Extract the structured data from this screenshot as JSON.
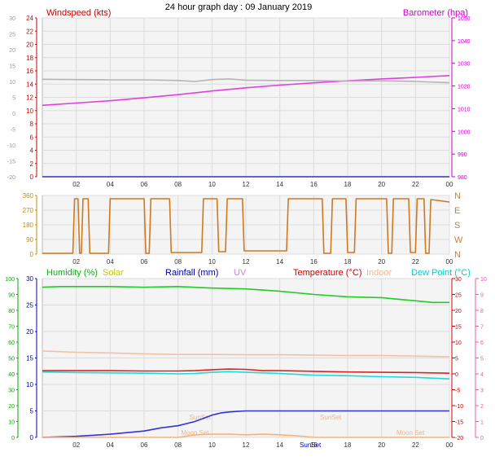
{
  "title": "24 hour graph day : 09 January 2019",
  "chart_data": [
    {
      "id": "wind_baro",
      "type": "line",
      "x_ticks": [
        "02",
        "04",
        "06",
        "08",
        "10",
        "12",
        "14",
        "16",
        "18",
        "20",
        "22",
        "00"
      ],
      "left_axis": {
        "label": "Windspeed (kts)",
        "ylim": [
          0,
          24
        ],
        "ticks": [
          0,
          2,
          4,
          6,
          8,
          10,
          12,
          14,
          16,
          18,
          20,
          22,
          24
        ],
        "color": "#cc0000"
      },
      "far_left_axis": {
        "ylim": [
          -20,
          30
        ],
        "ticks": [
          -20,
          -15,
          -10,
          -5,
          0,
          5,
          10,
          15,
          20,
          25,
          30
        ],
        "color": "#999999"
      },
      "right_axis": {
        "label": "Barometer (hpa)",
        "ylim": [
          980,
          1050
        ],
        "ticks": [
          980,
          990,
          1000,
          1010,
          1020,
          1030,
          1040,
          1050
        ],
        "color": "#cc00cc"
      },
      "series": [
        {
          "axis": "right",
          "color": "#e040e0",
          "x": [
            0,
            2,
            4,
            6,
            8,
            10,
            12,
            14,
            16,
            18,
            20,
            22,
            24
          ],
          "values": [
            1011.5,
            1012.5,
            1013.5,
            1014.8,
            1016.2,
            1017.8,
            1019.2,
            1020.4,
            1021.4,
            1022.3,
            1023.1,
            1023.8,
            1024.6
          ]
        },
        {
          "axis": "far_left",
          "color": "#b4b4b4",
          "x": [
            0,
            2,
            4,
            6,
            8,
            9,
            10,
            11,
            12,
            14,
            16,
            18,
            20,
            22,
            24
          ],
          "values": [
            10.7,
            10.6,
            10.5,
            10.5,
            10.3,
            10.0,
            10.6,
            10.8,
            10.4,
            10.3,
            10.3,
            10.1,
            10.2,
            10.0,
            9.6
          ]
        },
        {
          "axis": "left",
          "color": "#3030c8",
          "x": [
            0,
            24
          ],
          "values": [
            0,
            0
          ]
        }
      ]
    },
    {
      "id": "wind_dir",
      "type": "line",
      "x_ticks": [
        "02",
        "04",
        "06",
        "08",
        "10",
        "12",
        "14",
        "16",
        "18",
        "20",
        "22",
        "00"
      ],
      "left_axis": {
        "ylim": [
          0,
          360
        ],
        "ticks": [
          0,
          90,
          180,
          270,
          360
        ],
        "color": "#cc8800"
      },
      "right_axis": {
        "labels": [
          "N",
          "E",
          "S",
          "W",
          "N"
        ]
      },
      "series": [
        {
          "color": "#d07820",
          "x": [
            0,
            1.8,
            1.9,
            2.1,
            2.2,
            2.3,
            2.4,
            2.7,
            2.8,
            3.9,
            4.0,
            6.0,
            6.1,
            6.3,
            6.4,
            7.5,
            7.6,
            9.4,
            9.5,
            10.3,
            10.4,
            10.8,
            10.9,
            11.8,
            11.9,
            14.4,
            14.5,
            16.5,
            16.6,
            17.0,
            17.1,
            17.9,
            18.0,
            18.4,
            18.5,
            20.3,
            20.4,
            20.6,
            20.7,
            21.6,
            21.7,
            22.0,
            22.1,
            22.5,
            22.6,
            22.8,
            22.9,
            24
          ],
          "values": [
            5,
            5,
            340,
            340,
            5,
            5,
            340,
            340,
            5,
            5,
            340,
            340,
            5,
            5,
            340,
            340,
            10,
            10,
            340,
            340,
            15,
            15,
            340,
            340,
            20,
            20,
            340,
            340,
            5,
            5,
            340,
            340,
            10,
            10,
            340,
            340,
            5,
            5,
            340,
            340,
            10,
            10,
            340,
            340,
            5,
            5,
            335,
            320
          ]
        }
      ]
    },
    {
      "id": "temp_hum",
      "type": "line",
      "x_ticks": [
        "02",
        "04",
        "06",
        "08",
        "10",
        "12",
        "14",
        "16",
        "18",
        "20",
        "22",
        "00"
      ],
      "legend": [
        {
          "label": "Humidity (%)",
          "color": "#00bb00"
        },
        {
          "label": "Solar",
          "color": "#c8c800"
        },
        {
          "label": "Rainfall (mm)",
          "color": "#0000aa"
        },
        {
          "label": "UV",
          "color": "#d080d0"
        },
        {
          "label": "Temperature (°C)",
          "color": "#cc0000"
        },
        {
          "label": "Indoor",
          "color": "#f0b898"
        },
        {
          "label": "Dew Point (°C)",
          "color": "#00cccc"
        }
      ],
      "humidity_axis": {
        "ylim": [
          0,
          100
        ],
        "ticks": [
          0,
          10,
          20,
          30,
          40,
          50,
          60,
          70,
          80,
          90,
          100
        ],
        "color": "#00aa00"
      },
      "rain_axis": {
        "ylim": [
          0,
          30
        ],
        "ticks": [
          0,
          5,
          10,
          15,
          20,
          25,
          30
        ],
        "color": "#0000aa"
      },
      "temp_axis": {
        "ylim": [
          -20,
          30
        ],
        "ticks": [
          -20,
          -15,
          -10,
          -5,
          0,
          5,
          10,
          15,
          20,
          25,
          30
        ],
        "color": "#cc0000"
      },
      "uv_axis": {
        "ylim": [
          0,
          10
        ],
        "ticks": [
          0,
          1,
          2,
          3,
          4,
          5,
          6,
          7,
          8,
          9,
          10
        ],
        "color": "#e060a0"
      },
      "annotations": [
        {
          "text": "SunSet",
          "x": 9.3
        },
        {
          "text": "SunSet",
          "x": 17.0
        },
        {
          "text": "SunSet",
          "x": 15.8
        },
        {
          "text": "Moon Set",
          "x": 9.0
        },
        {
          "text": "Moon Set",
          "x": 21.7
        }
      ],
      "series": [
        {
          "name": "Humidity (%)",
          "axis": "humidity",
          "color": "#22cc22",
          "x": [
            0,
            1,
            2,
            4,
            6,
            8,
            10,
            12,
            14,
            15,
            16,
            18,
            20,
            21,
            22,
            23,
            24
          ],
          "values": [
            94.5,
            95,
            95,
            95,
            94.5,
            95,
            94,
            93.5,
            92,
            91,
            90,
            88.5,
            88,
            87,
            86,
            85,
            85
          ]
        },
        {
          "name": "Indoor",
          "axis": "temp",
          "color": "#f4c0a4",
          "x": [
            0,
            2,
            4,
            6,
            8,
            10,
            12,
            14,
            16,
            18,
            20,
            22,
            24
          ],
          "values": [
            7.2,
            6.8,
            6.6,
            6.3,
            6.1,
            6.1,
            6.0,
            6.0,
            5.9,
            5.8,
            5.8,
            5.6,
            5.4
          ]
        },
        {
          "name": "Temperature (°C)",
          "axis": "temp",
          "color": "#dd2222",
          "x": [
            0,
            2,
            4,
            6,
            8,
            9,
            10,
            11,
            12,
            13,
            14,
            16,
            18,
            20,
            22,
            24
          ],
          "values": [
            1.0,
            1.0,
            1.0,
            0.9,
            0.9,
            1.0,
            1.3,
            1.5,
            1.4,
            1.0,
            1.0,
            0.8,
            0.6,
            0.5,
            0.4,
            0.2
          ]
        },
        {
          "name": "Dew Point (°C)",
          "axis": "temp",
          "color": "#22d8e0",
          "x": [
            0,
            2,
            4,
            6,
            8,
            9,
            10,
            11,
            12,
            14,
            16,
            18,
            20,
            22,
            24
          ],
          "values": [
            0.6,
            0.4,
            0.3,
            0.2,
            0.0,
            0.1,
            0.5,
            0.7,
            0.5,
            0.1,
            -0.4,
            -0.6,
            -0.9,
            -1.1,
            -1.6
          ]
        },
        {
          "name": "Rainfall (mm)",
          "axis": "rain",
          "color": "#3333dd",
          "x": [
            0,
            2,
            4,
            6,
            7,
            8,
            9,
            9.5,
            10,
            10.5,
            11,
            11.5,
            12,
            16,
            20,
            23,
            24
          ],
          "values": [
            0,
            0.2,
            0.6,
            1.2,
            1.8,
            2.2,
            3.0,
            3.6,
            4.2,
            4.6,
            4.8,
            4.9,
            5.0,
            5.0,
            5.0,
            5.0,
            5.0
          ]
        },
        {
          "name": "Solar",
          "axis": "rain",
          "color": "#ffb070",
          "x": [
            0,
            8,
            9,
            10,
            11,
            12,
            13,
            14,
            15,
            16,
            24
          ],
          "values": [
            0,
            0,
            0.5,
            0.6,
            0.6,
            0.5,
            0.6,
            0.5,
            0.3,
            0,
            0
          ]
        }
      ]
    }
  ]
}
